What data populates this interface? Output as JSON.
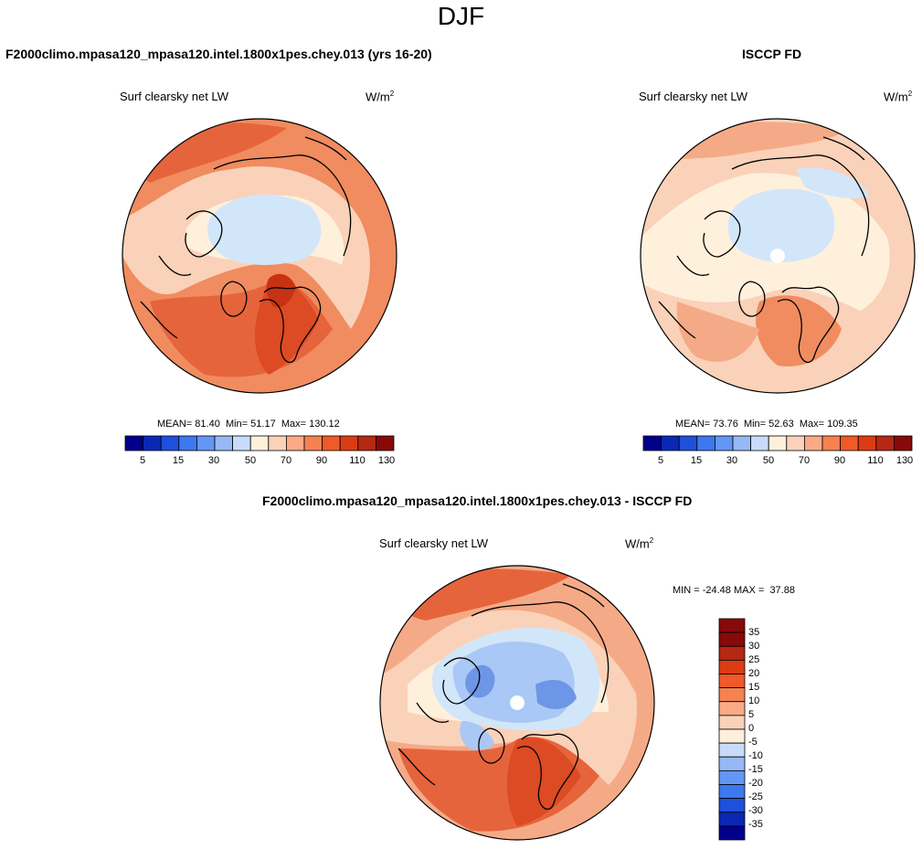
{
  "page": {
    "season": "DJF"
  },
  "panels": [
    {
      "case_title": "F2000climo.mpasa120_mpasa120.intel.1800x1pes.chey.013 (yrs 16-20)",
      "variable": "Surf clearsky net LW",
      "units_base": "W/m",
      "units_exp": "2",
      "stats": {
        "mean_label": "MEAN=",
        "mean": "81.40",
        "min_label": "Min=",
        "min": "51.17",
        "max_label": "Max=",
        "max": "130.12"
      }
    },
    {
      "case_title": "ISCCP FD",
      "variable": "Surf clearsky net LW",
      "units_base": "W/m",
      "units_exp": "2",
      "stats": {
        "mean_label": "MEAN=",
        "mean": "73.76",
        "min_label": "Min=",
        "min": "52.63",
        "max_label": "Max=",
        "max": "109.35"
      }
    },
    {
      "case_title": "F2000climo.mpasa120_mpasa120.intel.1800x1pes.chey.013 - ISCCP FD",
      "variable": "Surf clearsky net LW",
      "units_base": "W/m",
      "units_exp": "2",
      "stats": {
        "min_label": "MIN =",
        "min": "-24.48",
        "max_label": "MAX =",
        "max": "37.88"
      }
    }
  ],
  "colorbar_abs": {
    "colors": [
      "#00008b",
      "#0a28b4",
      "#1e50dc",
      "#3c78f0",
      "#6496f5",
      "#96b9f5",
      "#c8dcfa",
      "#fff0dc",
      "#fad2b9",
      "#faaa87",
      "#f58250",
      "#ef5a28",
      "#dc3c14",
      "#b42814",
      "#870a0a"
    ],
    "tick_labels": [
      "5",
      "15",
      "30",
      "50",
      "70",
      "90",
      "110",
      "130"
    ]
  },
  "colorbar_diff": {
    "colors": [
      "#00008b",
      "#0a28b4",
      "#1e50dc",
      "#3c78f0",
      "#6496f5",
      "#96b9f5",
      "#c8dcfa",
      "#fff0dc",
      "#fad2b9",
      "#faaa87",
      "#f58250",
      "#ef5a28",
      "#dc3c14",
      "#b42814",
      "#870a0a"
    ],
    "tick_labels": [
      "35",
      "30",
      "25",
      "20",
      "15",
      "10",
      "5",
      "0",
      "-5",
      "-10",
      "-15",
      "-20",
      "-25",
      "-30",
      "-35"
    ]
  },
  "map_colors": {
    "pale_blue": "#d2e6fa",
    "light_blue": "#aac8f5",
    "mid_blue": "#6e96e6",
    "cream": "#fff0dc",
    "peach": "#fad2b9",
    "light_orange": "#f5aa87",
    "orange": "#f08c5f",
    "red_orange": "#e6643c",
    "deep_orange": "#dc4b23",
    "dark_red": "#c83214"
  }
}
